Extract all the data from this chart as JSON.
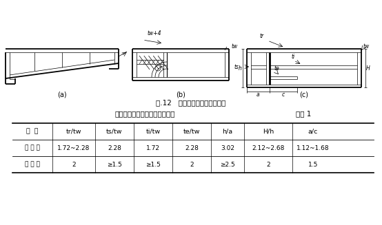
{
  "fig_caption": "图.12   变截面吊车梁的端部节点",
  "table_title": "突变截面处各几何参数的优化解",
  "table_ref": "附表 1",
  "headers": [
    "参  数",
    "tr/tw",
    "ts/tw",
    "ti/tw",
    "te/tw",
    "h/a",
    "H/h",
    "a/c"
  ],
  "row1_label": "优 化 解",
  "row1_values": [
    "1.72~2.28",
    "2.28",
    "1.72",
    "2.28",
    "3.02",
    "2.12~2.68",
    "1.12~1.68"
  ],
  "row2_label": "建 议 值",
  "row2_values": [
    "2",
    "≥1.5",
    "≥1.5",
    "2",
    "≥2.5",
    "2",
    "1.5"
  ],
  "bg_color": "#ffffff"
}
